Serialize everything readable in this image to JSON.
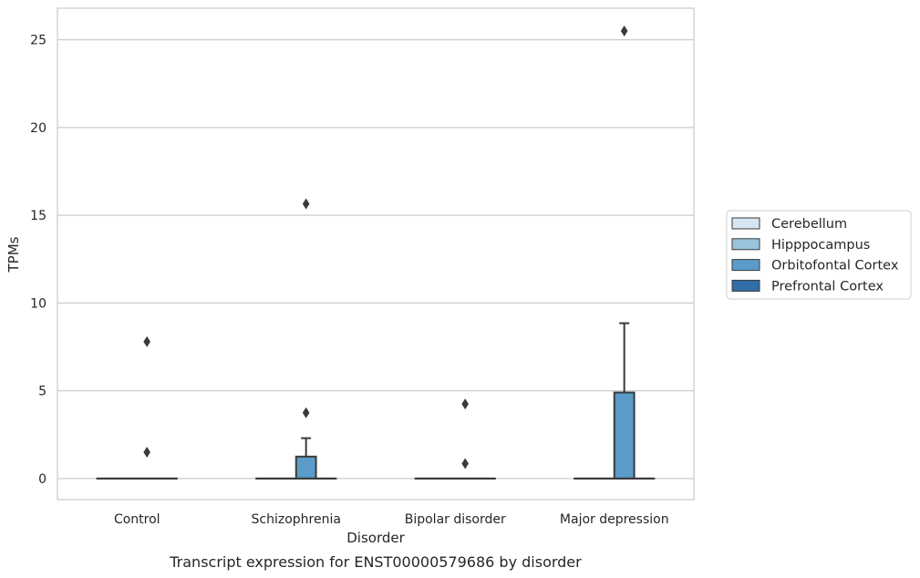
{
  "chart_data": {
    "type": "box",
    "caption": "Transcript expression for ENST00000579686 by disorder",
    "xlabel": "Disorder",
    "ylabel": "TPMs",
    "ylim": [
      -1.2,
      26.8
    ],
    "yticks": [
      0,
      5,
      10,
      15,
      20,
      25
    ],
    "grid": "horizontal",
    "legend_position": "right",
    "categories": [
      "Control",
      "Schizophrenia",
      "Bipolar disorder",
      "Major depression"
    ],
    "series": [
      {
        "name": "Cerebellum",
        "color": "#d6e5f2",
        "boxes": [
          {
            "q1": 0,
            "median": 0,
            "q3": 0,
            "whisker_low": 0,
            "whisker_high": 0,
            "outliers": []
          },
          {
            "q1": 0,
            "median": 0,
            "q3": 0,
            "whisker_low": 0,
            "whisker_high": 0,
            "outliers": []
          },
          {
            "q1": 0,
            "median": 0,
            "q3": 0,
            "whisker_low": 0,
            "whisker_high": 0,
            "outliers": []
          },
          {
            "q1": 0,
            "median": 0,
            "q3": 0,
            "whisker_low": 0,
            "whisker_high": 0,
            "outliers": []
          }
        ]
      },
      {
        "name": "Hipppocampus",
        "color": "#9ac3de",
        "boxes": [
          {
            "q1": 0,
            "median": 0,
            "q3": 0,
            "whisker_low": 0,
            "whisker_high": 0,
            "outliers": []
          },
          {
            "q1": 0,
            "median": 0,
            "q3": 0,
            "whisker_low": 0,
            "whisker_high": 0,
            "outliers": []
          },
          {
            "q1": 0,
            "median": 0,
            "q3": 0,
            "whisker_low": 0,
            "whisker_high": 0,
            "outliers": []
          },
          {
            "q1": 0,
            "median": 0,
            "q3": 0,
            "whisker_low": 0,
            "whisker_high": 0,
            "outliers": []
          }
        ]
      },
      {
        "name": "Orbitofontal Cortex",
        "color": "#5a9bc9",
        "boxes": [
          {
            "q1": 0,
            "median": 0,
            "q3": 0,
            "whisker_low": 0,
            "whisker_high": 0,
            "outliers": [
              1.5,
              7.8
            ]
          },
          {
            "q1": 0,
            "median": 0,
            "q3": 1.25,
            "whisker_low": 0,
            "whisker_high": 2.3,
            "outliers": [
              3.75,
              15.65
            ]
          },
          {
            "q1": 0,
            "median": 0,
            "q3": 0,
            "whisker_low": 0,
            "whisker_high": 0,
            "outliers": [
              0.85,
              4.25
            ]
          },
          {
            "q1": 0,
            "median": 0,
            "q3": 4.9,
            "whisker_low": 0,
            "whisker_high": 8.85,
            "outliers": [
              25.5
            ]
          }
        ]
      },
      {
        "name": "Prefrontal Cortex",
        "color": "#2f6ea6",
        "boxes": [
          {
            "q1": 0,
            "median": 0,
            "q3": 0,
            "whisker_low": 0,
            "whisker_high": 0,
            "outliers": []
          },
          {
            "q1": 0,
            "median": 0,
            "q3": 0,
            "whisker_low": 0,
            "whisker_high": 0,
            "outliers": []
          },
          {
            "q1": 0,
            "median": 0,
            "q3": 0,
            "whisker_low": 0,
            "whisker_high": 0,
            "outliers": []
          },
          {
            "q1": 0,
            "median": 0,
            "q3": 0,
            "whisker_low": 0,
            "whisker_high": 0,
            "outliers": []
          }
        ]
      }
    ]
  },
  "colors": {
    "grid": "#cccccc",
    "frame": "#cccccc",
    "box_edge": "#3a3a3a",
    "text": "#262626"
  }
}
